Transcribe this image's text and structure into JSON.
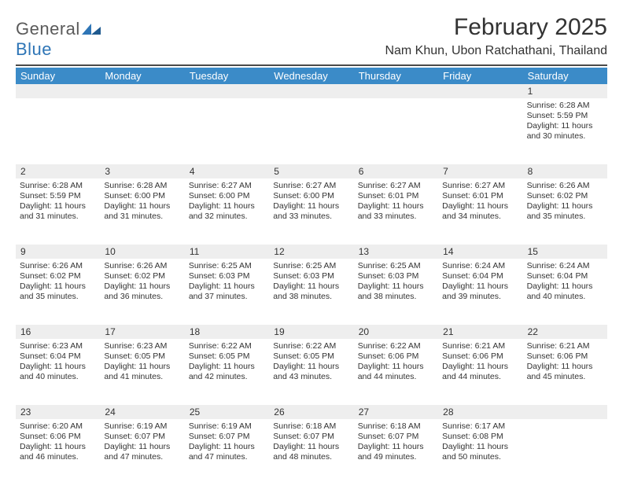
{
  "brand": {
    "top": "General",
    "bottom": "Blue",
    "logo_color": "#2e75b6",
    "text_gray": "#5a5a5a"
  },
  "title": "February 2025",
  "location": "Nam Khun, Ubon Ratchathani, Thailand",
  "colors": {
    "header_bar": "#3b8bc8",
    "band": "#eeeeee",
    "rule": "#4a4a4a",
    "text": "#333333",
    "bg": "#ffffff"
  },
  "weekdays": [
    "Sunday",
    "Monday",
    "Tuesday",
    "Wednesday",
    "Thursday",
    "Friday",
    "Saturday"
  ],
  "weeks": [
    [
      {
        "n": "",
        "sunrise": "",
        "sunset": "",
        "daylight": ""
      },
      {
        "n": "",
        "sunrise": "",
        "sunset": "",
        "daylight": ""
      },
      {
        "n": "",
        "sunrise": "",
        "sunset": "",
        "daylight": ""
      },
      {
        "n": "",
        "sunrise": "",
        "sunset": "",
        "daylight": ""
      },
      {
        "n": "",
        "sunrise": "",
        "sunset": "",
        "daylight": ""
      },
      {
        "n": "",
        "sunrise": "",
        "sunset": "",
        "daylight": ""
      },
      {
        "n": "1",
        "sunrise": "Sunrise: 6:28 AM",
        "sunset": "Sunset: 5:59 PM",
        "daylight": "Daylight: 11 hours and 30 minutes."
      }
    ],
    [
      {
        "n": "2",
        "sunrise": "Sunrise: 6:28 AM",
        "sunset": "Sunset: 5:59 PM",
        "daylight": "Daylight: 11 hours and 31 minutes."
      },
      {
        "n": "3",
        "sunrise": "Sunrise: 6:28 AM",
        "sunset": "Sunset: 6:00 PM",
        "daylight": "Daylight: 11 hours and 31 minutes."
      },
      {
        "n": "4",
        "sunrise": "Sunrise: 6:27 AM",
        "sunset": "Sunset: 6:00 PM",
        "daylight": "Daylight: 11 hours and 32 minutes."
      },
      {
        "n": "5",
        "sunrise": "Sunrise: 6:27 AM",
        "sunset": "Sunset: 6:00 PM",
        "daylight": "Daylight: 11 hours and 33 minutes."
      },
      {
        "n": "6",
        "sunrise": "Sunrise: 6:27 AM",
        "sunset": "Sunset: 6:01 PM",
        "daylight": "Daylight: 11 hours and 33 minutes."
      },
      {
        "n": "7",
        "sunrise": "Sunrise: 6:27 AM",
        "sunset": "Sunset: 6:01 PM",
        "daylight": "Daylight: 11 hours and 34 minutes."
      },
      {
        "n": "8",
        "sunrise": "Sunrise: 6:26 AM",
        "sunset": "Sunset: 6:02 PM",
        "daylight": "Daylight: 11 hours and 35 minutes."
      }
    ],
    [
      {
        "n": "9",
        "sunrise": "Sunrise: 6:26 AM",
        "sunset": "Sunset: 6:02 PM",
        "daylight": "Daylight: 11 hours and 35 minutes."
      },
      {
        "n": "10",
        "sunrise": "Sunrise: 6:26 AM",
        "sunset": "Sunset: 6:02 PM",
        "daylight": "Daylight: 11 hours and 36 minutes."
      },
      {
        "n": "11",
        "sunrise": "Sunrise: 6:25 AM",
        "sunset": "Sunset: 6:03 PM",
        "daylight": "Daylight: 11 hours and 37 minutes."
      },
      {
        "n": "12",
        "sunrise": "Sunrise: 6:25 AM",
        "sunset": "Sunset: 6:03 PM",
        "daylight": "Daylight: 11 hours and 38 minutes."
      },
      {
        "n": "13",
        "sunrise": "Sunrise: 6:25 AM",
        "sunset": "Sunset: 6:03 PM",
        "daylight": "Daylight: 11 hours and 38 minutes."
      },
      {
        "n": "14",
        "sunrise": "Sunrise: 6:24 AM",
        "sunset": "Sunset: 6:04 PM",
        "daylight": "Daylight: 11 hours and 39 minutes."
      },
      {
        "n": "15",
        "sunrise": "Sunrise: 6:24 AM",
        "sunset": "Sunset: 6:04 PM",
        "daylight": "Daylight: 11 hours and 40 minutes."
      }
    ],
    [
      {
        "n": "16",
        "sunrise": "Sunrise: 6:23 AM",
        "sunset": "Sunset: 6:04 PM",
        "daylight": "Daylight: 11 hours and 40 minutes."
      },
      {
        "n": "17",
        "sunrise": "Sunrise: 6:23 AM",
        "sunset": "Sunset: 6:05 PM",
        "daylight": "Daylight: 11 hours and 41 minutes."
      },
      {
        "n": "18",
        "sunrise": "Sunrise: 6:22 AM",
        "sunset": "Sunset: 6:05 PM",
        "daylight": "Daylight: 11 hours and 42 minutes."
      },
      {
        "n": "19",
        "sunrise": "Sunrise: 6:22 AM",
        "sunset": "Sunset: 6:05 PM",
        "daylight": "Daylight: 11 hours and 43 minutes."
      },
      {
        "n": "20",
        "sunrise": "Sunrise: 6:22 AM",
        "sunset": "Sunset: 6:06 PM",
        "daylight": "Daylight: 11 hours and 44 minutes."
      },
      {
        "n": "21",
        "sunrise": "Sunrise: 6:21 AM",
        "sunset": "Sunset: 6:06 PM",
        "daylight": "Daylight: 11 hours and 44 minutes."
      },
      {
        "n": "22",
        "sunrise": "Sunrise: 6:21 AM",
        "sunset": "Sunset: 6:06 PM",
        "daylight": "Daylight: 11 hours and 45 minutes."
      }
    ],
    [
      {
        "n": "23",
        "sunrise": "Sunrise: 6:20 AM",
        "sunset": "Sunset: 6:06 PM",
        "daylight": "Daylight: 11 hours and 46 minutes."
      },
      {
        "n": "24",
        "sunrise": "Sunrise: 6:19 AM",
        "sunset": "Sunset: 6:07 PM",
        "daylight": "Daylight: 11 hours and 47 minutes."
      },
      {
        "n": "25",
        "sunrise": "Sunrise: 6:19 AM",
        "sunset": "Sunset: 6:07 PM",
        "daylight": "Daylight: 11 hours and 47 minutes."
      },
      {
        "n": "26",
        "sunrise": "Sunrise: 6:18 AM",
        "sunset": "Sunset: 6:07 PM",
        "daylight": "Daylight: 11 hours and 48 minutes."
      },
      {
        "n": "27",
        "sunrise": "Sunrise: 6:18 AM",
        "sunset": "Sunset: 6:07 PM",
        "daylight": "Daylight: 11 hours and 49 minutes."
      },
      {
        "n": "28",
        "sunrise": "Sunrise: 6:17 AM",
        "sunset": "Sunset: 6:08 PM",
        "daylight": "Daylight: 11 hours and 50 minutes."
      },
      {
        "n": "",
        "sunrise": "",
        "sunset": "",
        "daylight": ""
      }
    ]
  ]
}
